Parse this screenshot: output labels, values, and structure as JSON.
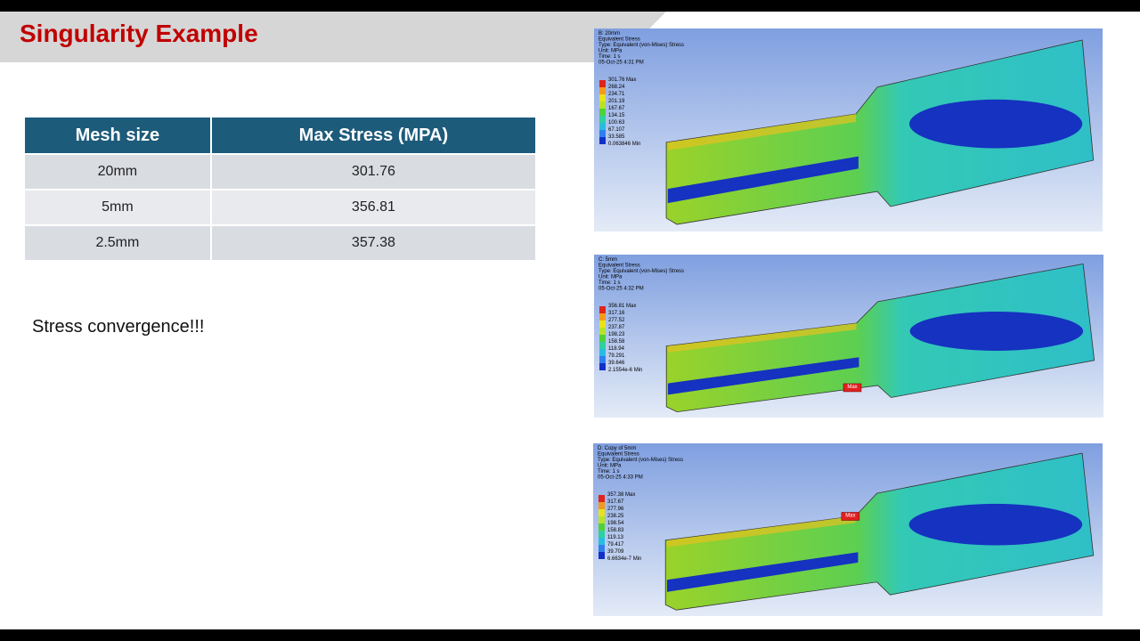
{
  "header": {
    "title": "Singularity Example"
  },
  "table": {
    "columns": [
      "Mesh size",
      "Max Stress (MPA)"
    ],
    "rows": [
      [
        "20mm",
        "301.76"
      ],
      [
        "5mm",
        "356.81"
      ],
      [
        "2.5mm",
        "357.38"
      ]
    ]
  },
  "note": "Stress convergence!!!",
  "figures": [
    {
      "lines": [
        "B: 20mm",
        "Equivalent Stress",
        "Type: Equivalent (von-Mises) Stress",
        "Unit: MPa",
        "Time: 1 s",
        "05-Oct-25 4:31 PM"
      ],
      "legend": [
        "301.76 Max",
        "268.24",
        "234.71",
        "201.19",
        "167.67",
        "134.15",
        "100.63",
        "67.107",
        "33.585",
        "0.063846 Min"
      ]
    },
    {
      "lines": [
        "C: 5mm",
        "Equivalent Stress",
        "Type: Equivalent (von-Mises) Stress",
        "Unit: MPa",
        "Time: 1 s",
        "05-Oct-25 4:32 PM"
      ],
      "legend": [
        "356.81 Max",
        "317.16",
        "277.52",
        "237.87",
        "198.23",
        "158.58",
        "118.94",
        "79.291",
        "39.646",
        "2.1554e-6 Min"
      ],
      "max_label": "Max"
    },
    {
      "lines": [
        "D: Copy of 5mm",
        "Equivalent Stress",
        "Type: Equivalent (von-Mises) Stress",
        "Unit: MPa",
        "Time: 1 s",
        "05-Oct-25 4:33 PM"
      ],
      "legend": [
        "357.38 Max",
        "317.67",
        "277.96",
        "238.25",
        "198.54",
        "158.83",
        "119.13",
        "79.417",
        "39.709",
        "6.6634e-7 Min"
      ],
      "max_label": "Max"
    }
  ]
}
